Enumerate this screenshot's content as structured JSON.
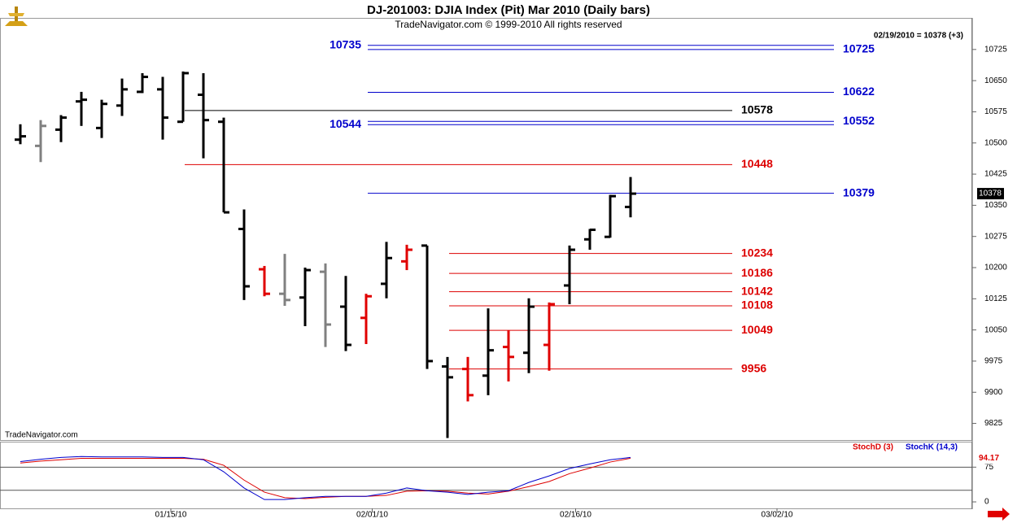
{
  "chart_data": [
    {
      "type": "ohlc",
      "title": "DJ-201003:  DJIA Index (Pit) Mar 2010  (Daily bars)",
      "subtitle": "TradeNavigator.com © 1999-2010 All rights reserved",
      "last_info": "02/19/2010 = 10378 (+3)",
      "watermark": "TradeNavigator.com",
      "xlim": [
        -1,
        46.8
      ],
      "xticks": [
        {
          "value": 7.4,
          "label": "01/15/10"
        },
        {
          "value": 17.3,
          "label": "02/01/10"
        },
        {
          "value": 27.3,
          "label": "02/16/10"
        },
        {
          "value": 37.2,
          "label": "03/02/10"
        }
      ],
      "ylim": [
        9785,
        10801
      ],
      "yticks": [
        9825,
        9900,
        9975,
        10050,
        10125,
        10200,
        10275,
        10350,
        10425,
        10500,
        10575,
        10650,
        10725
      ],
      "open": [
        10508,
        10493,
        10532,
        10600,
        10536,
        10590,
        10623,
        10629,
        10551,
        10616,
        10551,
        10293,
        10196,
        10137,
        10128,
        10190,
        10106,
        10079,
        10161,
        10215,
        10253,
        9962,
        9956,
        9940,
        10009,
        9995,
        10014,
        10157,
        10268,
        10274,
        10346
      ],
      "high": [
        10545,
        10555,
        10567,
        10623,
        10604,
        10655,
        10668,
        10659,
        10672,
        10668,
        10561,
        10340,
        10204,
        10233,
        10200,
        10210,
        10180,
        10137,
        10262,
        10255,
        10253,
        9985,
        9985,
        10102,
        10049,
        10126,
        10116,
        10253,
        10293,
        10375,
        10418
      ],
      "low": [
        10497,
        10454,
        10502,
        10541,
        10512,
        10565,
        10620,
        10508,
        10551,
        10463,
        10333,
        10122,
        10131,
        10108,
        10059,
        10009,
        9999,
        10016,
        10126,
        10194,
        9956,
        9790,
        9878,
        9893,
        9926,
        9946,
        9952,
        10112,
        10243,
        10272,
        10321
      ],
      "close": [
        10516,
        10541,
        10561,
        10604,
        10594,
        10629,
        10659,
        10561,
        10668,
        10555,
        10333,
        10155,
        10137,
        10122,
        10194,
        10063,
        10014,
        10131,
        10223,
        10243,
        9975,
        9936,
        9893,
        10001,
        9985,
        10106,
        10112,
        10243,
        10291,
        10372,
        10378
      ],
      "colors": [
        "#000000",
        "#808080",
        "#000000",
        "#000000",
        "#000000",
        "#000000",
        "#000000",
        "#000000",
        "#000000",
        "#000000",
        "#000000",
        "#000000",
        "#e00000",
        "#808080",
        "#000000",
        "#808080",
        "#000000",
        "#e00000",
        "#000000",
        "#e00000",
        "#000000",
        "#000000",
        "#e00000",
        "#000000",
        "#e00000",
        "#000000",
        "#e00000",
        "#000000",
        "#000000",
        "#000000",
        "#000000"
      ],
      "levels": [
        {
          "value": 10735,
          "color": "#0000cc",
          "from": 17,
          "to": 40,
          "label_side": "left"
        },
        {
          "value": 10725,
          "color": "#0000cc",
          "from": 17,
          "to": 40,
          "label_side": "right"
        },
        {
          "value": 10622,
          "color": "#0000cc",
          "from": 17,
          "to": 40,
          "label_side": "right"
        },
        {
          "value": 10578,
          "color": "#000000",
          "from": 8,
          "to": 35,
          "label_side": "right"
        },
        {
          "value": 10552,
          "color": "#0000cc",
          "from": 17,
          "to": 40,
          "label_side": "right"
        },
        {
          "value": 10544,
          "color": "#0000cc",
          "from": 17,
          "to": 40,
          "label_side": "left"
        },
        {
          "value": 10448,
          "color": "#dd0000",
          "from": 8,
          "to": 35,
          "label_side": "right"
        },
        {
          "value": 10379,
          "color": "#0000cc",
          "from": 17,
          "to": 40,
          "label_side": "right"
        },
        {
          "value": 10234,
          "color": "#dd0000",
          "from": 21,
          "to": 35,
          "label_side": "right"
        },
        {
          "value": 10186,
          "color": "#dd0000",
          "from": 21,
          "to": 35,
          "label_side": "right"
        },
        {
          "value": 10142,
          "color": "#dd0000",
          "from": 21,
          "to": 35,
          "label_side": "right"
        },
        {
          "value": 10108,
          "color": "#dd0000",
          "from": 21,
          "to": 35,
          "label_side": "right"
        },
        {
          "value": 10049,
          "color": "#dd0000",
          "from": 21,
          "to": 35,
          "label_side": "right"
        },
        {
          "value": 9956,
          "color": "#dd0000",
          "from": 21,
          "to": 35,
          "label_side": "right"
        }
      ]
    },
    {
      "type": "line",
      "xlim": [
        -1,
        46.8
      ],
      "ylim": [
        -14,
        130
      ],
      "yticks": [
        0,
        75
      ],
      "reference_lines": [
        25,
        75
      ],
      "series": [
        {
          "name": "StochD (3)",
          "color": "#dd0000",
          "values": [
            84,
            88,
            91,
            94,
            94,
            94,
            94,
            94,
            94,
            92,
            79,
            47,
            21,
            9,
            7,
            10,
            12,
            12,
            14,
            23,
            24,
            23,
            19,
            17,
            23,
            33,
            44,
            61,
            73,
            86,
            94.17
          ]
        },
        {
          "name": "StochK (14,3)",
          "color": "#0000cc",
          "values": [
            87,
            92,
            96,
            98,
            97,
            97,
            97,
            96,
            96,
            91,
            65,
            30,
            5,
            5,
            9,
            12,
            12,
            12,
            19,
            30,
            24,
            21,
            16,
            21,
            24,
            42,
            56,
            72,
            82,
            91,
            96
          ]
        }
      ]
    }
  ]
}
